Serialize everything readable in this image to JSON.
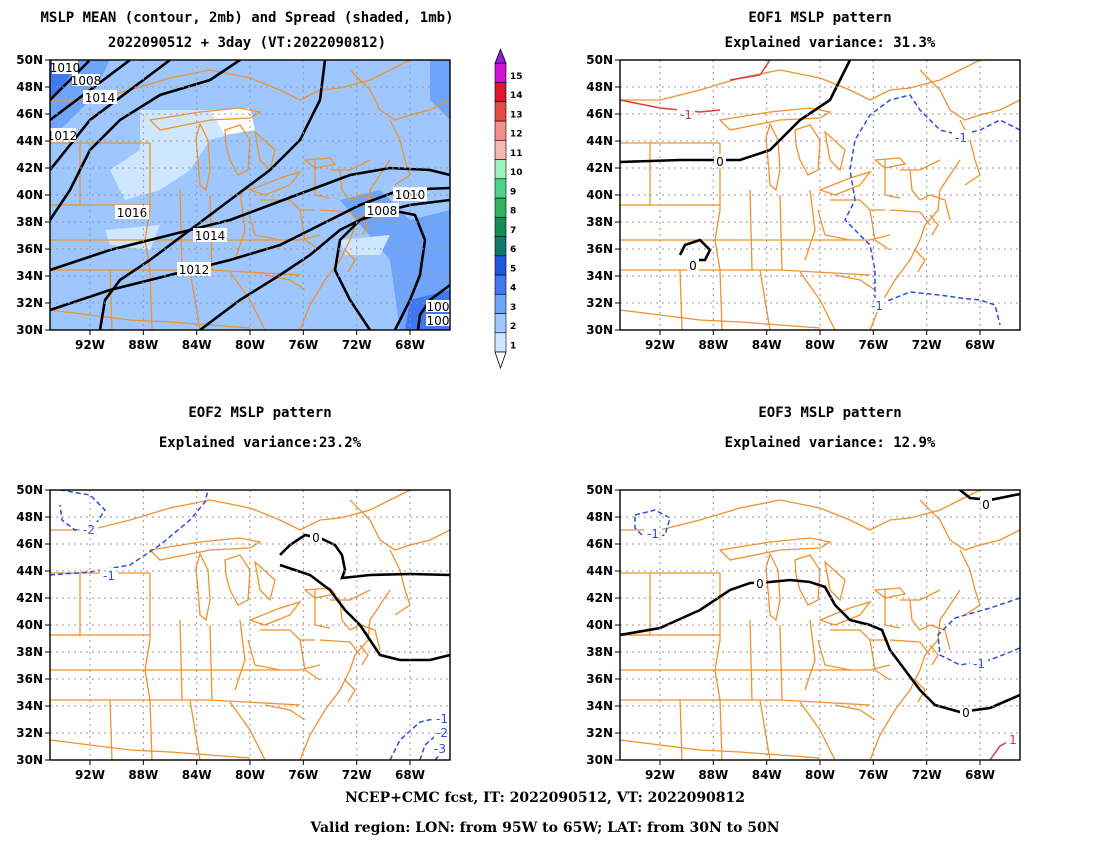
{
  "footer": {
    "line1": "NCEP+CMC fcst, IT: 2022090512, VT: 2022090812",
    "line2": "Valid region: LON: from 95W to 65W; LAT: from 30N to 50N"
  },
  "axes": {
    "lat_ticks": [
      "50N",
      "48N",
      "46N",
      "44N",
      "42N",
      "40N",
      "38N",
      "36N",
      "34N",
      "32N",
      "30N"
    ],
    "lon_ticks": [
      "92W",
      "88W",
      "84W",
      "80W",
      "76W",
      "72W",
      "68W"
    ]
  },
  "colorbar": {
    "levels": [
      "1",
      "2",
      "3",
      "4",
      "5",
      "6",
      "7",
      "8",
      "9",
      "10",
      "11",
      "12",
      "13",
      "14",
      "15"
    ],
    "colors": [
      "#cfe6ff",
      "#9ec7ff",
      "#6fa4fb",
      "#3f78f0",
      "#1f55e0",
      "#0f7a6b",
      "#168c55",
      "#2fb35f",
      "#4fd28a",
      "#9ff0c0",
      "#f7b7b0",
      "#f58f87",
      "#e84a45",
      "#e0142c",
      "#d20fd2",
      "#8c1fd8"
    ]
  },
  "panels": [
    {
      "id": "mean",
      "title1": "MSLP MEAN (contour, 2mb) and Spread (shaded, 1mb)",
      "title2": "2022090512 + 3day (VT:2022090812)",
      "contour_labels": [
        "1016",
        "1014",
        "1012",
        "1010",
        "1008",
        "1014",
        "1012",
        "1010",
        "100",
        "100",
        "1008"
      ]
    },
    {
      "id": "eof1",
      "title1": "EOF1 MSLP pattern",
      "title2": "Explained variance: 31.3%",
      "contour_labels": [
        "0",
        "0",
        "-1",
        "-1",
        "-1",
        "-1"
      ]
    },
    {
      "id": "eof2",
      "title1": "EOF2 MSLP pattern",
      "title2": "Explained variance:23.2%",
      "contour_labels": [
        "0",
        "-2",
        "-1",
        "-1",
        "-2",
        "-3"
      ]
    },
    {
      "id": "eof3",
      "title1": "EOF3 MSLP pattern",
      "title2": "Explained variance: 12.9%",
      "contour_labels": [
        "0",
        "0",
        "0",
        "0",
        "-1",
        "-1",
        "1"
      ]
    }
  ]
}
